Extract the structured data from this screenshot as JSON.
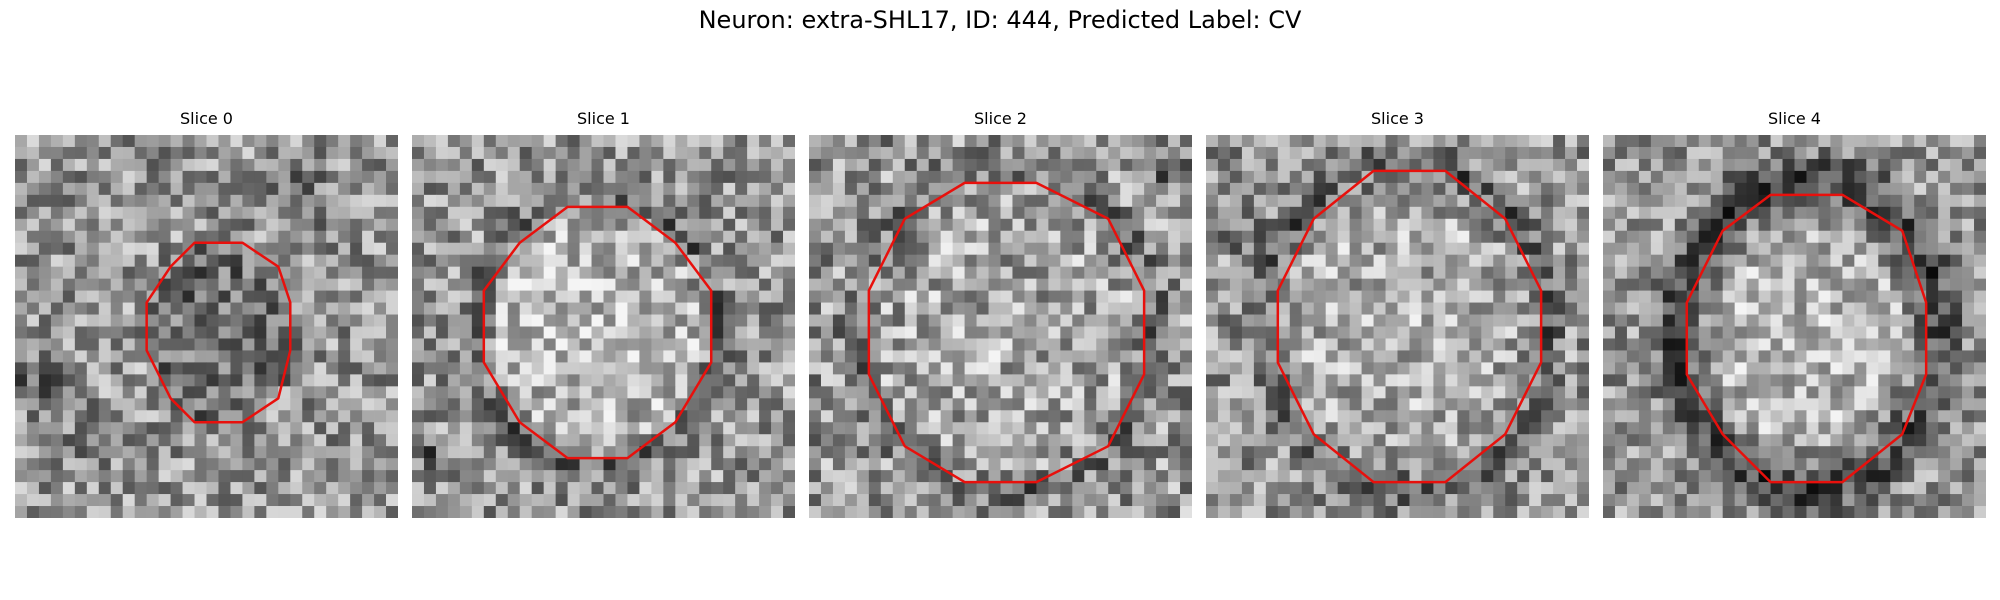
{
  "figure": {
    "title": "Neuron: extra-SHL17, ID: 444, Predicted Label: CV",
    "contour_color": "#e8100c",
    "image_colormap": "gray"
  },
  "panels": [
    {
      "title": "Slice 0"
    },
    {
      "title": "Slice 1"
    },
    {
      "title": "Slice 2"
    },
    {
      "title": "Slice 3"
    },
    {
      "title": "Slice 4"
    }
  ]
}
